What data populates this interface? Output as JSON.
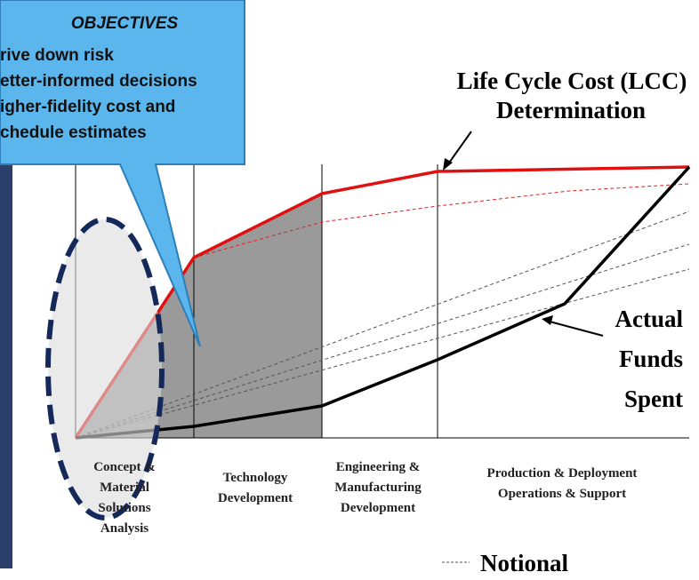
{
  "objectives": {
    "title": "OBJECTIVES",
    "items": [
      "rive down risk",
      "etter-informed decisions",
      "igher-fidelity cost and",
      "chedule estimates"
    ]
  },
  "lcc_label": {
    "lines": [
      "Life Cycle Cost (LCC)",
      "Determination"
    ]
  },
  "actual_label": {
    "lines": [
      "Actual",
      "Funds",
      "Spent"
    ]
  },
  "phases": [
    {
      "lines": [
        "Concept &",
        "Material",
        "Solutions",
        "Analysis"
      ]
    },
    {
      "lines": [
        "Technology",
        "Development"
      ]
    },
    {
      "lines": [
        "Engineering &",
        "Manufacturing",
        "Development"
      ]
    },
    {
      "lines": [
        "Production & Deployment",
        "Operations & Support"
      ]
    }
  ],
  "legend": {
    "notional": "Notional"
  }
}
